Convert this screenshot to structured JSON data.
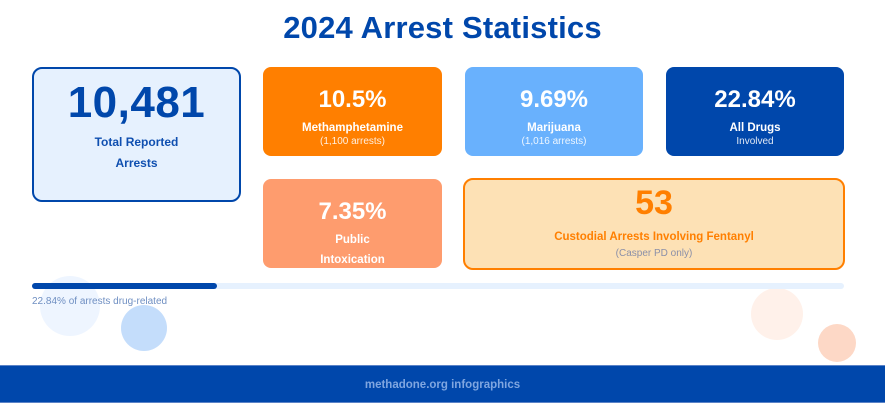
{
  "title": "2024 Arrest Statistics",
  "colors": {
    "primary_blue": "#0047ab",
    "light_blue": "#69b1fd",
    "orange": "#ff7f00",
    "salmon": "#fe9c6e",
    "pale_blue": "#e6f1fe",
    "pale_orange": "#fde1b5"
  },
  "total": {
    "value": "10,481",
    "label_line1": "Total Reported",
    "label_line2": "Arrests"
  },
  "cards": {
    "meth": {
      "value": "10.5%",
      "label": "Methamphetamine",
      "sub": "(1,100 arrests)"
    },
    "marijuana": {
      "value": "9.69%",
      "label": "Marijuana",
      "sub": "(1,016 arrests)"
    },
    "all_drugs": {
      "value": "22.84%",
      "label": "All Drugs",
      "sub": "Involved"
    },
    "public_intox": {
      "value": "7.35%",
      "label_line1": "Public",
      "label_line2": "Intoxication"
    },
    "fentanyl": {
      "value": "53",
      "label": "Custodial Arrests Involving Fentanyl",
      "sub": "(Casper PD only)"
    }
  },
  "progress": {
    "percent": 22.84,
    "label": "22.84% of arrests drug-related"
  },
  "footer": {
    "text": "methadone.org infographics"
  }
}
